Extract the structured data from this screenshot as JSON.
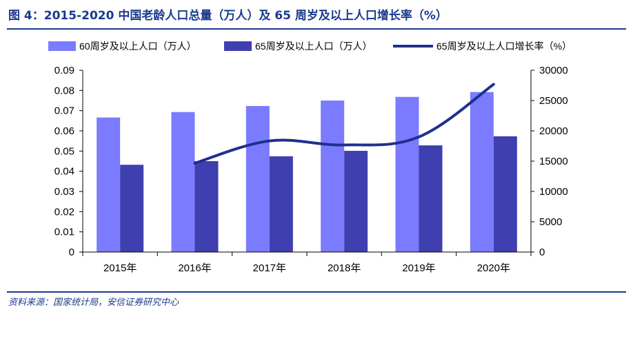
{
  "figure": {
    "title": "图 4：2015-2020 中国老龄人口总量（万人）及 65 周岁及以上人口增长率（%）",
    "source": "资料来源：国家统计局，安信证券研究中心"
  },
  "chart_data": {
    "type": "bar",
    "categories": [
      "2015年",
      "2016年",
      "2017年",
      "2018年",
      "2019年",
      "2020年"
    ],
    "series": [
      {
        "name": "60周岁及以上人口（万人）",
        "kind": "bar",
        "axis": "right",
        "color": "#7b7bff",
        "values": [
          22200,
          23100,
          24100,
          25000,
          25600,
          26400
        ]
      },
      {
        "name": "65周岁及以上人口（万人）",
        "kind": "bar",
        "axis": "right",
        "color": "#3f3fb0",
        "values": [
          14400,
          15000,
          15800,
          16700,
          17600,
          19100
        ]
      },
      {
        "name": "65周岁及以上人口增长率（%）",
        "kind": "line",
        "axis": "left",
        "color": "#1f2f8f",
        "values": [
          null,
          0.044,
          0.055,
          0.053,
          0.057,
          0.083
        ]
      }
    ],
    "y_left": {
      "min": 0,
      "max": 0.09,
      "step": 0.01,
      "tick_labels": [
        "0",
        "0.01",
        "0.02",
        "0.03",
        "0.04",
        "0.05",
        "0.06",
        "0.07",
        "0.08",
        "0.09"
      ]
    },
    "y_right": {
      "min": 0,
      "max": 30000,
      "step": 5000,
      "tick_labels": [
        "0",
        "5000",
        "10000",
        "15000",
        "20000",
        "25000",
        "30000"
      ]
    },
    "grid": false,
    "legend_position": "top"
  }
}
